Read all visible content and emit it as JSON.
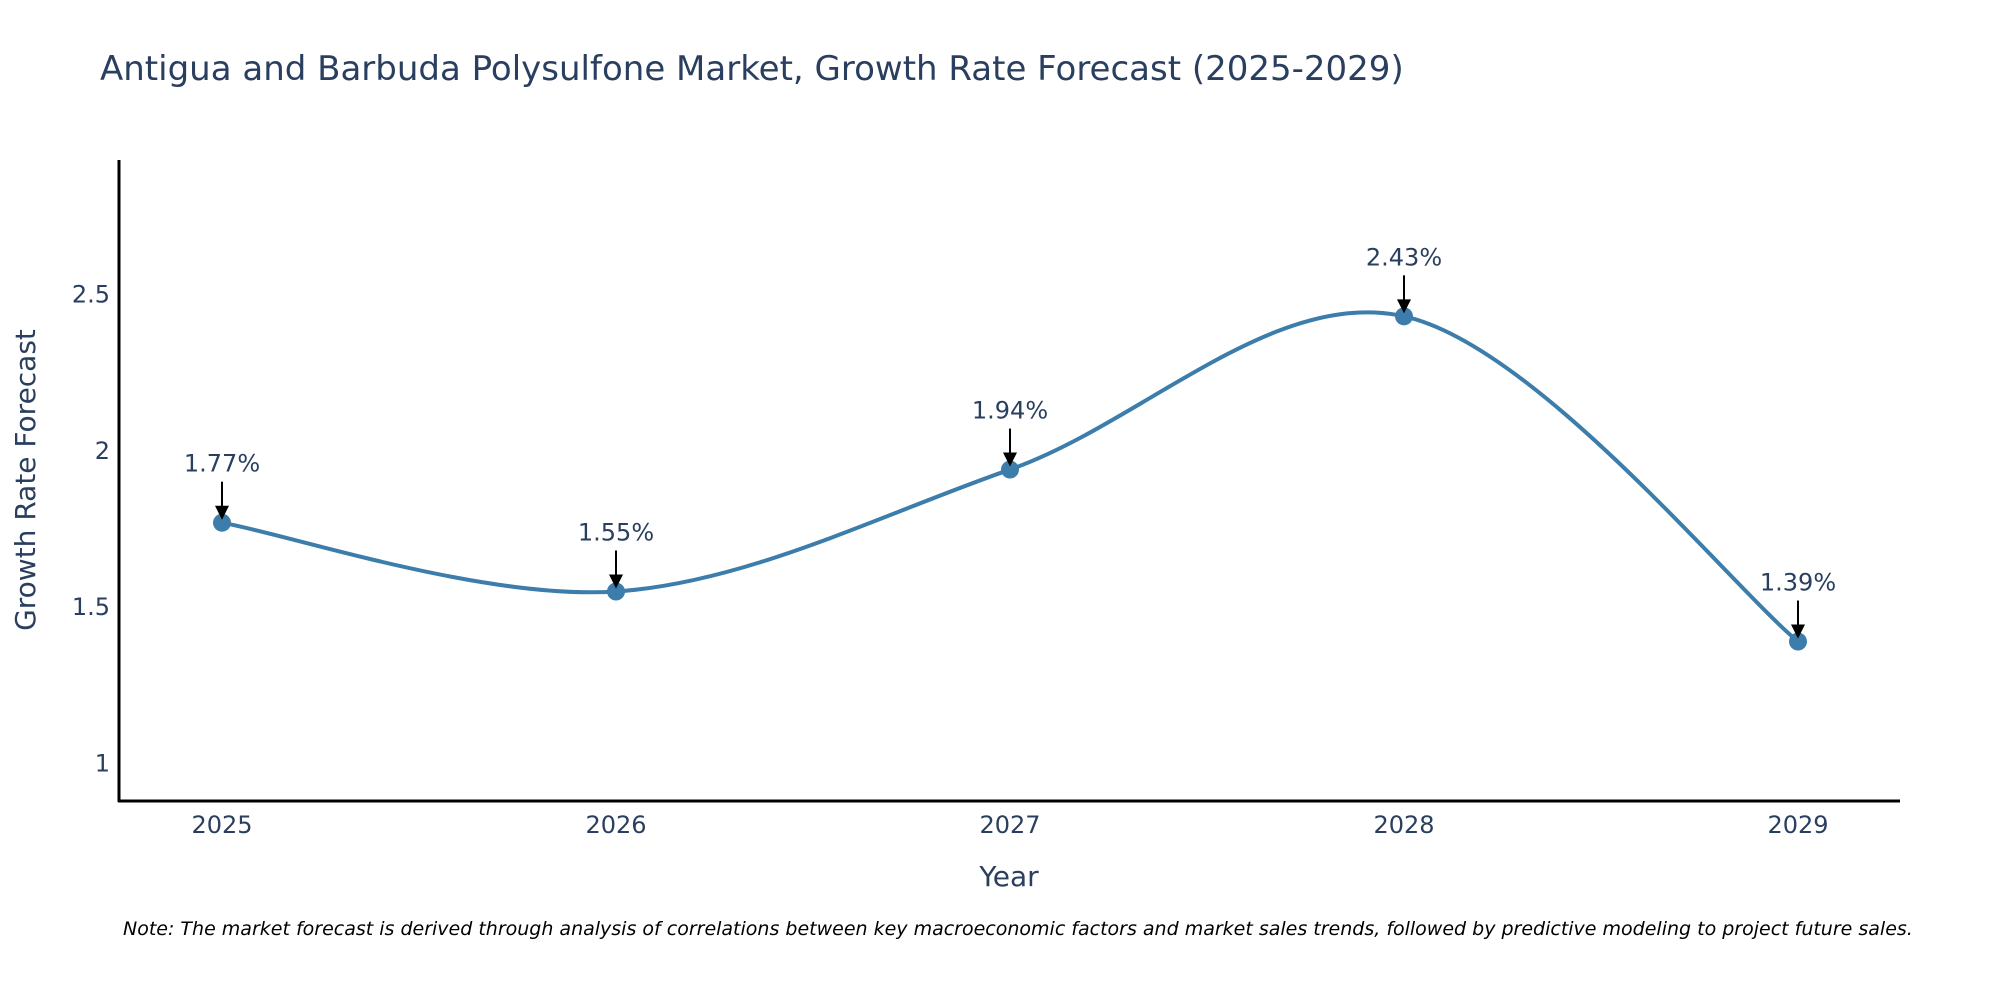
{
  "chart_data": {
    "type": "line",
    "title": "Antigua and Barbuda Polysulfone Market, Growth Rate Forecast (2025-2029)",
    "xlabel": "Year",
    "ylabel": "Growth Rate Forecast",
    "categories": [
      "2025",
      "2026",
      "2027",
      "2028",
      "2029"
    ],
    "values": [
      1.77,
      1.55,
      1.94,
      2.43,
      1.39
    ],
    "data_labels": [
      "1.77%",
      "1.55%",
      "1.94%",
      "2.43%",
      "1.39%"
    ],
    "ylim": [
      0.88,
      2.93
    ],
    "yticks": [
      1,
      1.5,
      2,
      2.5
    ],
    "ytick_labels": [
      "1",
      "1.5",
      "2",
      "2.5"
    ],
    "grid": false,
    "line_shape": "spline",
    "line_color": "#3c7dab",
    "marker_color": "#3c7dab"
  },
  "note": "Note: The market forecast is derived through analysis of correlations between key macroeconomic factors and market sales trends, followed by predictive modeling to project future sales."
}
